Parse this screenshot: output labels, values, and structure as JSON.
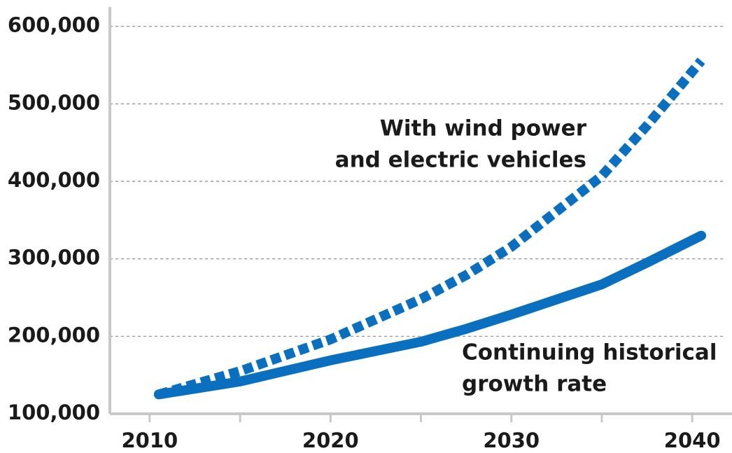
{
  "chart_data": {
    "type": "line",
    "x": [
      2010.5,
      2015,
      2020,
      2025,
      2027.5,
      2030,
      2035,
      2037.5,
      2040.5
    ],
    "series": [
      {
        "color": "#0a6fbf",
        "dashed": true,
        "values": [
          125000,
          155000,
          196000,
          248000,
          279000,
          315500,
          407000,
          472000,
          555600
        ]
      },
      {
        "color": "#0a6fbf",
        "dashed": false,
        "values": [
          125000,
          141700,
          169000,
          193000,
          209600,
          228000,
          267000,
          295000,
          330000
        ]
      }
    ],
    "annotations": [
      {
        "text": "With wind power"
      },
      {
        "text": "and electric vehicles"
      },
      {
        "text": "Continuing historical"
      },
      {
        "text": "growth rate"
      }
    ],
    "xlim": [
      2007.8,
      2042.2
    ],
    "ylim": [
      100000,
      625000
    ],
    "xticks": [
      2010,
      2020,
      2030,
      2040
    ],
    "xminorticks": [
      2015,
      2025,
      2035
    ],
    "yticks": [
      {
        "value": 100000,
        "label": "100,000"
      },
      {
        "value": 200000,
        "label": "200,000"
      },
      {
        "value": 300000,
        "label": "300,000"
      },
      {
        "value": 400000,
        "label": "400,000"
      },
      {
        "value": 500000,
        "label": "500,000"
      },
      {
        "value": 600000,
        "label": "600,000"
      }
    ],
    "grid": true
  }
}
